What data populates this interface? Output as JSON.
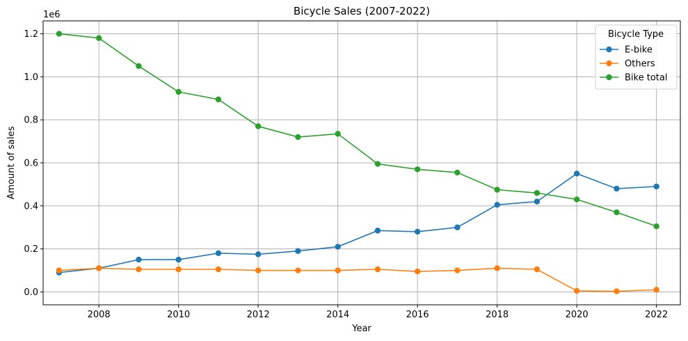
{
  "chart_data": {
    "type": "line",
    "title": "Bicycle Sales (2007-2022)",
    "xlabel": "Year",
    "ylabel": "Amount of sales",
    "y_offset_text": "1e6",
    "grid": true,
    "xlim": [
      2006.6,
      2022.6
    ],
    "ylim": [
      -60000,
      1260000
    ],
    "x_ticks": [
      2008,
      2010,
      2012,
      2014,
      2016,
      2018,
      2020,
      2022
    ],
    "y_ticks": [
      0,
      200000,
      400000,
      600000,
      800000,
      1000000,
      1200000
    ],
    "y_tick_labels": [
      "0.0",
      "0.2",
      "0.4",
      "0.6",
      "0.8",
      "1.0",
      "1.2"
    ],
    "legend": {
      "title": "Bicycle Type",
      "placement": "top-right"
    },
    "x": [
      2007,
      2008,
      2009,
      2010,
      2011,
      2012,
      2013,
      2014,
      2015,
      2016,
      2017,
      2018,
      2019,
      2020,
      2021,
      2022
    ],
    "series": [
      {
        "name": "E-bike",
        "color": "#1f77b4",
        "values": [
          90000,
          110000,
          150000,
          150000,
          180000,
          175000,
          190000,
          210000,
          285000,
          280000,
          300000,
          405000,
          420000,
          550000,
          480000,
          490000
        ]
      },
      {
        "name": "Others",
        "color": "#ff7f0e",
        "values": [
          100000,
          110000,
          105000,
          105000,
          105000,
          100000,
          100000,
          100000,
          105000,
          95000,
          100000,
          110000,
          105000,
          5000,
          3000,
          10000
        ]
      },
      {
        "name": "Bike total",
        "color": "#2ca02c",
        "values": [
          1200000,
          1180000,
          1050000,
          930000,
          895000,
          770000,
          720000,
          735000,
          595000,
          570000,
          555000,
          475000,
          460000,
          430000,
          370000,
          305000
        ]
      }
    ]
  }
}
